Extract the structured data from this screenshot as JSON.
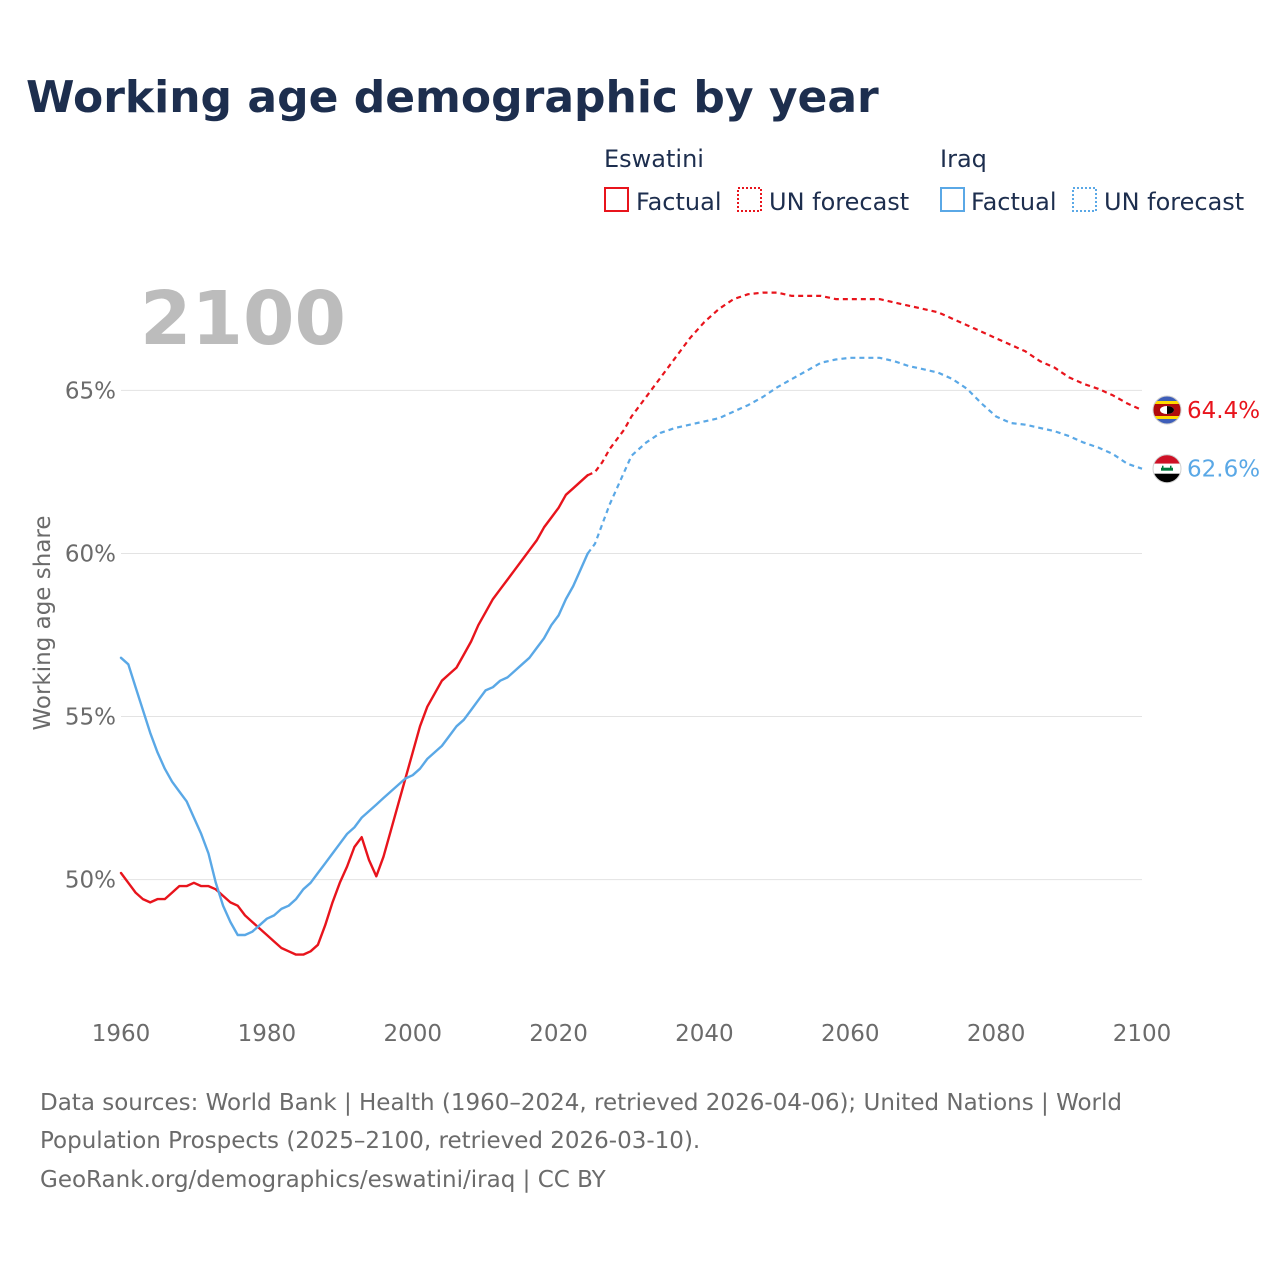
{
  "title": "Working age demographic by year",
  "year_display": "2100",
  "legend": {
    "groups": [
      {
        "country": "Eswatini",
        "color": "#e8141c",
        "factual_label": "Factual",
        "forecast_label": "UN forecast"
      },
      {
        "country": "Iraq",
        "color": "#5aa8e6",
        "factual_label": "Factual",
        "forecast_label": "UN forecast"
      }
    ]
  },
  "end_labels": {
    "eswatini": "64.4%",
    "iraq": "62.6%"
  },
  "footer": {
    "line1": "Data sources: World Bank | Health (1960–2024, retrieved 2026-04-06); United Nations | World",
    "line2": "Population Prospects (2025–2100, retrieved 2026-03-10).",
    "line3": "GeoRank.org/demographics/eswatini/iraq | CC BY"
  },
  "chart_data": {
    "type": "line",
    "title": "Working age demographic by year",
    "xlabel": "",
    "ylabel": "Working age share",
    "xlim": [
      1960,
      2100
    ],
    "ylim": [
      46.0,
      69.0
    ],
    "grid": true,
    "x_ticks": [
      1960,
      1980,
      2000,
      2020,
      2040,
      2060,
      2080,
      2100
    ],
    "x_tick_labels": [
      "1960",
      "1980",
      "2000",
      "2020",
      "2040",
      "2060",
      "2080",
      "2100"
    ],
    "y_ticks": [
      50,
      55,
      60,
      65
    ],
    "y_tick_labels": [
      "50%",
      "55%",
      "60%",
      "65%"
    ],
    "factual_end_year": 2024,
    "series": [
      {
        "name": "Eswatini",
        "color": "#e8141c",
        "factual": [
          [
            1960,
            50.2
          ],
          [
            1961,
            49.9
          ],
          [
            1962,
            49.6
          ],
          [
            1963,
            49.4
          ],
          [
            1964,
            49.3
          ],
          [
            1965,
            49.4
          ],
          [
            1966,
            49.4
          ],
          [
            1967,
            49.6
          ],
          [
            1968,
            49.8
          ],
          [
            1969,
            49.8
          ],
          [
            1970,
            49.9
          ],
          [
            1971,
            49.8
          ],
          [
            1972,
            49.8
          ],
          [
            1973,
            49.7
          ],
          [
            1974,
            49.5
          ],
          [
            1975,
            49.3
          ],
          [
            1976,
            49.2
          ],
          [
            1977,
            48.9
          ],
          [
            1978,
            48.7
          ],
          [
            1979,
            48.5
          ],
          [
            1980,
            48.3
          ],
          [
            1981,
            48.1
          ],
          [
            1982,
            47.9
          ],
          [
            1983,
            47.8
          ],
          [
            1984,
            47.7
          ],
          [
            1985,
            47.7
          ],
          [
            1986,
            47.8
          ],
          [
            1987,
            48.0
          ],
          [
            1988,
            48.6
          ],
          [
            1989,
            49.3
          ],
          [
            1990,
            49.9
          ],
          [
            1991,
            50.4
          ],
          [
            1992,
            51.0
          ],
          [
            1993,
            51.3
          ],
          [
            1994,
            50.6
          ],
          [
            1995,
            50.1
          ],
          [
            1996,
            50.7
          ],
          [
            1997,
            51.5
          ],
          [
            1998,
            52.3
          ],
          [
            1999,
            53.1
          ],
          [
            2000,
            53.9
          ],
          [
            2001,
            54.7
          ],
          [
            2002,
            55.3
          ],
          [
            2003,
            55.7
          ],
          [
            2004,
            56.1
          ],
          [
            2005,
            56.3
          ],
          [
            2006,
            56.5
          ],
          [
            2007,
            56.9
          ],
          [
            2008,
            57.3
          ],
          [
            2009,
            57.8
          ],
          [
            2010,
            58.2
          ],
          [
            2011,
            58.6
          ],
          [
            2012,
            58.9
          ],
          [
            2013,
            59.2
          ],
          [
            2014,
            59.5
          ],
          [
            2015,
            59.8
          ],
          [
            2016,
            60.1
          ],
          [
            2017,
            60.4
          ],
          [
            2018,
            60.8
          ],
          [
            2019,
            61.1
          ],
          [
            2020,
            61.4
          ],
          [
            2021,
            61.8
          ],
          [
            2022,
            62.0
          ],
          [
            2023,
            62.2
          ],
          [
            2024,
            62.4
          ]
        ],
        "forecast": [
          [
            2024,
            62.4
          ],
          [
            2025,
            62.5
          ],
          [
            2026,
            62.8
          ],
          [
            2027,
            63.2
          ],
          [
            2028,
            63.5
          ],
          [
            2029,
            63.8
          ],
          [
            2030,
            64.2
          ],
          [
            2032,
            64.8
          ],
          [
            2034,
            65.4
          ],
          [
            2036,
            66.0
          ],
          [
            2038,
            66.6
          ],
          [
            2040,
            67.1
          ],
          [
            2042,
            67.5
          ],
          [
            2044,
            67.8
          ],
          [
            2046,
            67.95
          ],
          [
            2048,
            68.0
          ],
          [
            2050,
            68.0
          ],
          [
            2052,
            67.9
          ],
          [
            2054,
            67.9
          ],
          [
            2056,
            67.9
          ],
          [
            2058,
            67.8
          ],
          [
            2060,
            67.8
          ],
          [
            2062,
            67.8
          ],
          [
            2064,
            67.8
          ],
          [
            2066,
            67.7
          ],
          [
            2068,
            67.6
          ],
          [
            2070,
            67.5
          ],
          [
            2072,
            67.4
          ],
          [
            2074,
            67.2
          ],
          [
            2076,
            67.0
          ],
          [
            2078,
            66.8
          ],
          [
            2080,
            66.6
          ],
          [
            2082,
            66.4
          ],
          [
            2084,
            66.2
          ],
          [
            2086,
            65.9
          ],
          [
            2088,
            65.7
          ],
          [
            2090,
            65.4
          ],
          [
            2092,
            65.2
          ],
          [
            2094,
            65.05
          ],
          [
            2096,
            64.85
          ],
          [
            2098,
            64.6
          ],
          [
            2100,
            64.4
          ]
        ],
        "end_value": 64.4
      },
      {
        "name": "Iraq",
        "color": "#5aa8e6",
        "factual": [
          [
            1960,
            56.8
          ],
          [
            1961,
            56.6
          ],
          [
            1962,
            55.9
          ],
          [
            1963,
            55.2
          ],
          [
            1964,
            54.5
          ],
          [
            1965,
            53.9
          ],
          [
            1966,
            53.4
          ],
          [
            1967,
            53.0
          ],
          [
            1968,
            52.7
          ],
          [
            1969,
            52.4
          ],
          [
            1970,
            51.9
          ],
          [
            1971,
            51.4
          ],
          [
            1972,
            50.8
          ],
          [
            1973,
            49.9
          ],
          [
            1974,
            49.2
          ],
          [
            1975,
            48.7
          ],
          [
            1976,
            48.3
          ],
          [
            1977,
            48.3
          ],
          [
            1978,
            48.4
          ],
          [
            1979,
            48.6
          ],
          [
            1980,
            48.8
          ],
          [
            1981,
            48.9
          ],
          [
            1982,
            49.1
          ],
          [
            1983,
            49.2
          ],
          [
            1984,
            49.4
          ],
          [
            1985,
            49.7
          ],
          [
            1986,
            49.9
          ],
          [
            1987,
            50.2
          ],
          [
            1988,
            50.5
          ],
          [
            1989,
            50.8
          ],
          [
            1990,
            51.1
          ],
          [
            1991,
            51.4
          ],
          [
            1992,
            51.6
          ],
          [
            1993,
            51.9
          ],
          [
            1994,
            52.1
          ],
          [
            1995,
            52.3
          ],
          [
            1996,
            52.5
          ],
          [
            1997,
            52.7
          ],
          [
            1998,
            52.9
          ],
          [
            1999,
            53.1
          ],
          [
            2000,
            53.2
          ],
          [
            2001,
            53.4
          ],
          [
            2002,
            53.7
          ],
          [
            2003,
            53.9
          ],
          [
            2004,
            54.1
          ],
          [
            2005,
            54.4
          ],
          [
            2006,
            54.7
          ],
          [
            2007,
            54.9
          ],
          [
            2008,
            55.2
          ],
          [
            2009,
            55.5
          ],
          [
            2010,
            55.8
          ],
          [
            2011,
            55.9
          ],
          [
            2012,
            56.1
          ],
          [
            2013,
            56.2
          ],
          [
            2014,
            56.4
          ],
          [
            2015,
            56.6
          ],
          [
            2016,
            56.8
          ],
          [
            2017,
            57.1
          ],
          [
            2018,
            57.4
          ],
          [
            2019,
            57.8
          ],
          [
            2020,
            58.1
          ],
          [
            2021,
            58.6
          ],
          [
            2022,
            59.0
          ],
          [
            2023,
            59.5
          ],
          [
            2024,
            60.0
          ]
        ],
        "forecast": [
          [
            2024,
            60.0
          ],
          [
            2025,
            60.3
          ],
          [
            2026,
            60.9
          ],
          [
            2027,
            61.5
          ],
          [
            2028,
            62.0
          ],
          [
            2029,
            62.5
          ],
          [
            2030,
            63.0
          ],
          [
            2032,
            63.4
          ],
          [
            2034,
            63.7
          ],
          [
            2036,
            63.85
          ],
          [
            2038,
            63.95
          ],
          [
            2040,
            64.05
          ],
          [
            2042,
            64.15
          ],
          [
            2044,
            64.35
          ],
          [
            2046,
            64.55
          ],
          [
            2048,
            64.8
          ],
          [
            2050,
            65.1
          ],
          [
            2052,
            65.35
          ],
          [
            2054,
            65.6
          ],
          [
            2056,
            65.85
          ],
          [
            2058,
            65.95
          ],
          [
            2060,
            66.0
          ],
          [
            2062,
            66.0
          ],
          [
            2064,
            66.0
          ],
          [
            2066,
            65.9
          ],
          [
            2068,
            65.75
          ],
          [
            2070,
            65.65
          ],
          [
            2072,
            65.55
          ],
          [
            2074,
            65.35
          ],
          [
            2076,
            65.05
          ],
          [
            2078,
            64.6
          ],
          [
            2080,
            64.2
          ],
          [
            2082,
            64.0
          ],
          [
            2084,
            63.95
          ],
          [
            2086,
            63.85
          ],
          [
            2088,
            63.75
          ],
          [
            2090,
            63.6
          ],
          [
            2092,
            63.4
          ],
          [
            2094,
            63.25
          ],
          [
            2096,
            63.05
          ],
          [
            2098,
            62.75
          ],
          [
            2100,
            62.6
          ]
        ],
        "end_value": 62.6
      }
    ]
  }
}
